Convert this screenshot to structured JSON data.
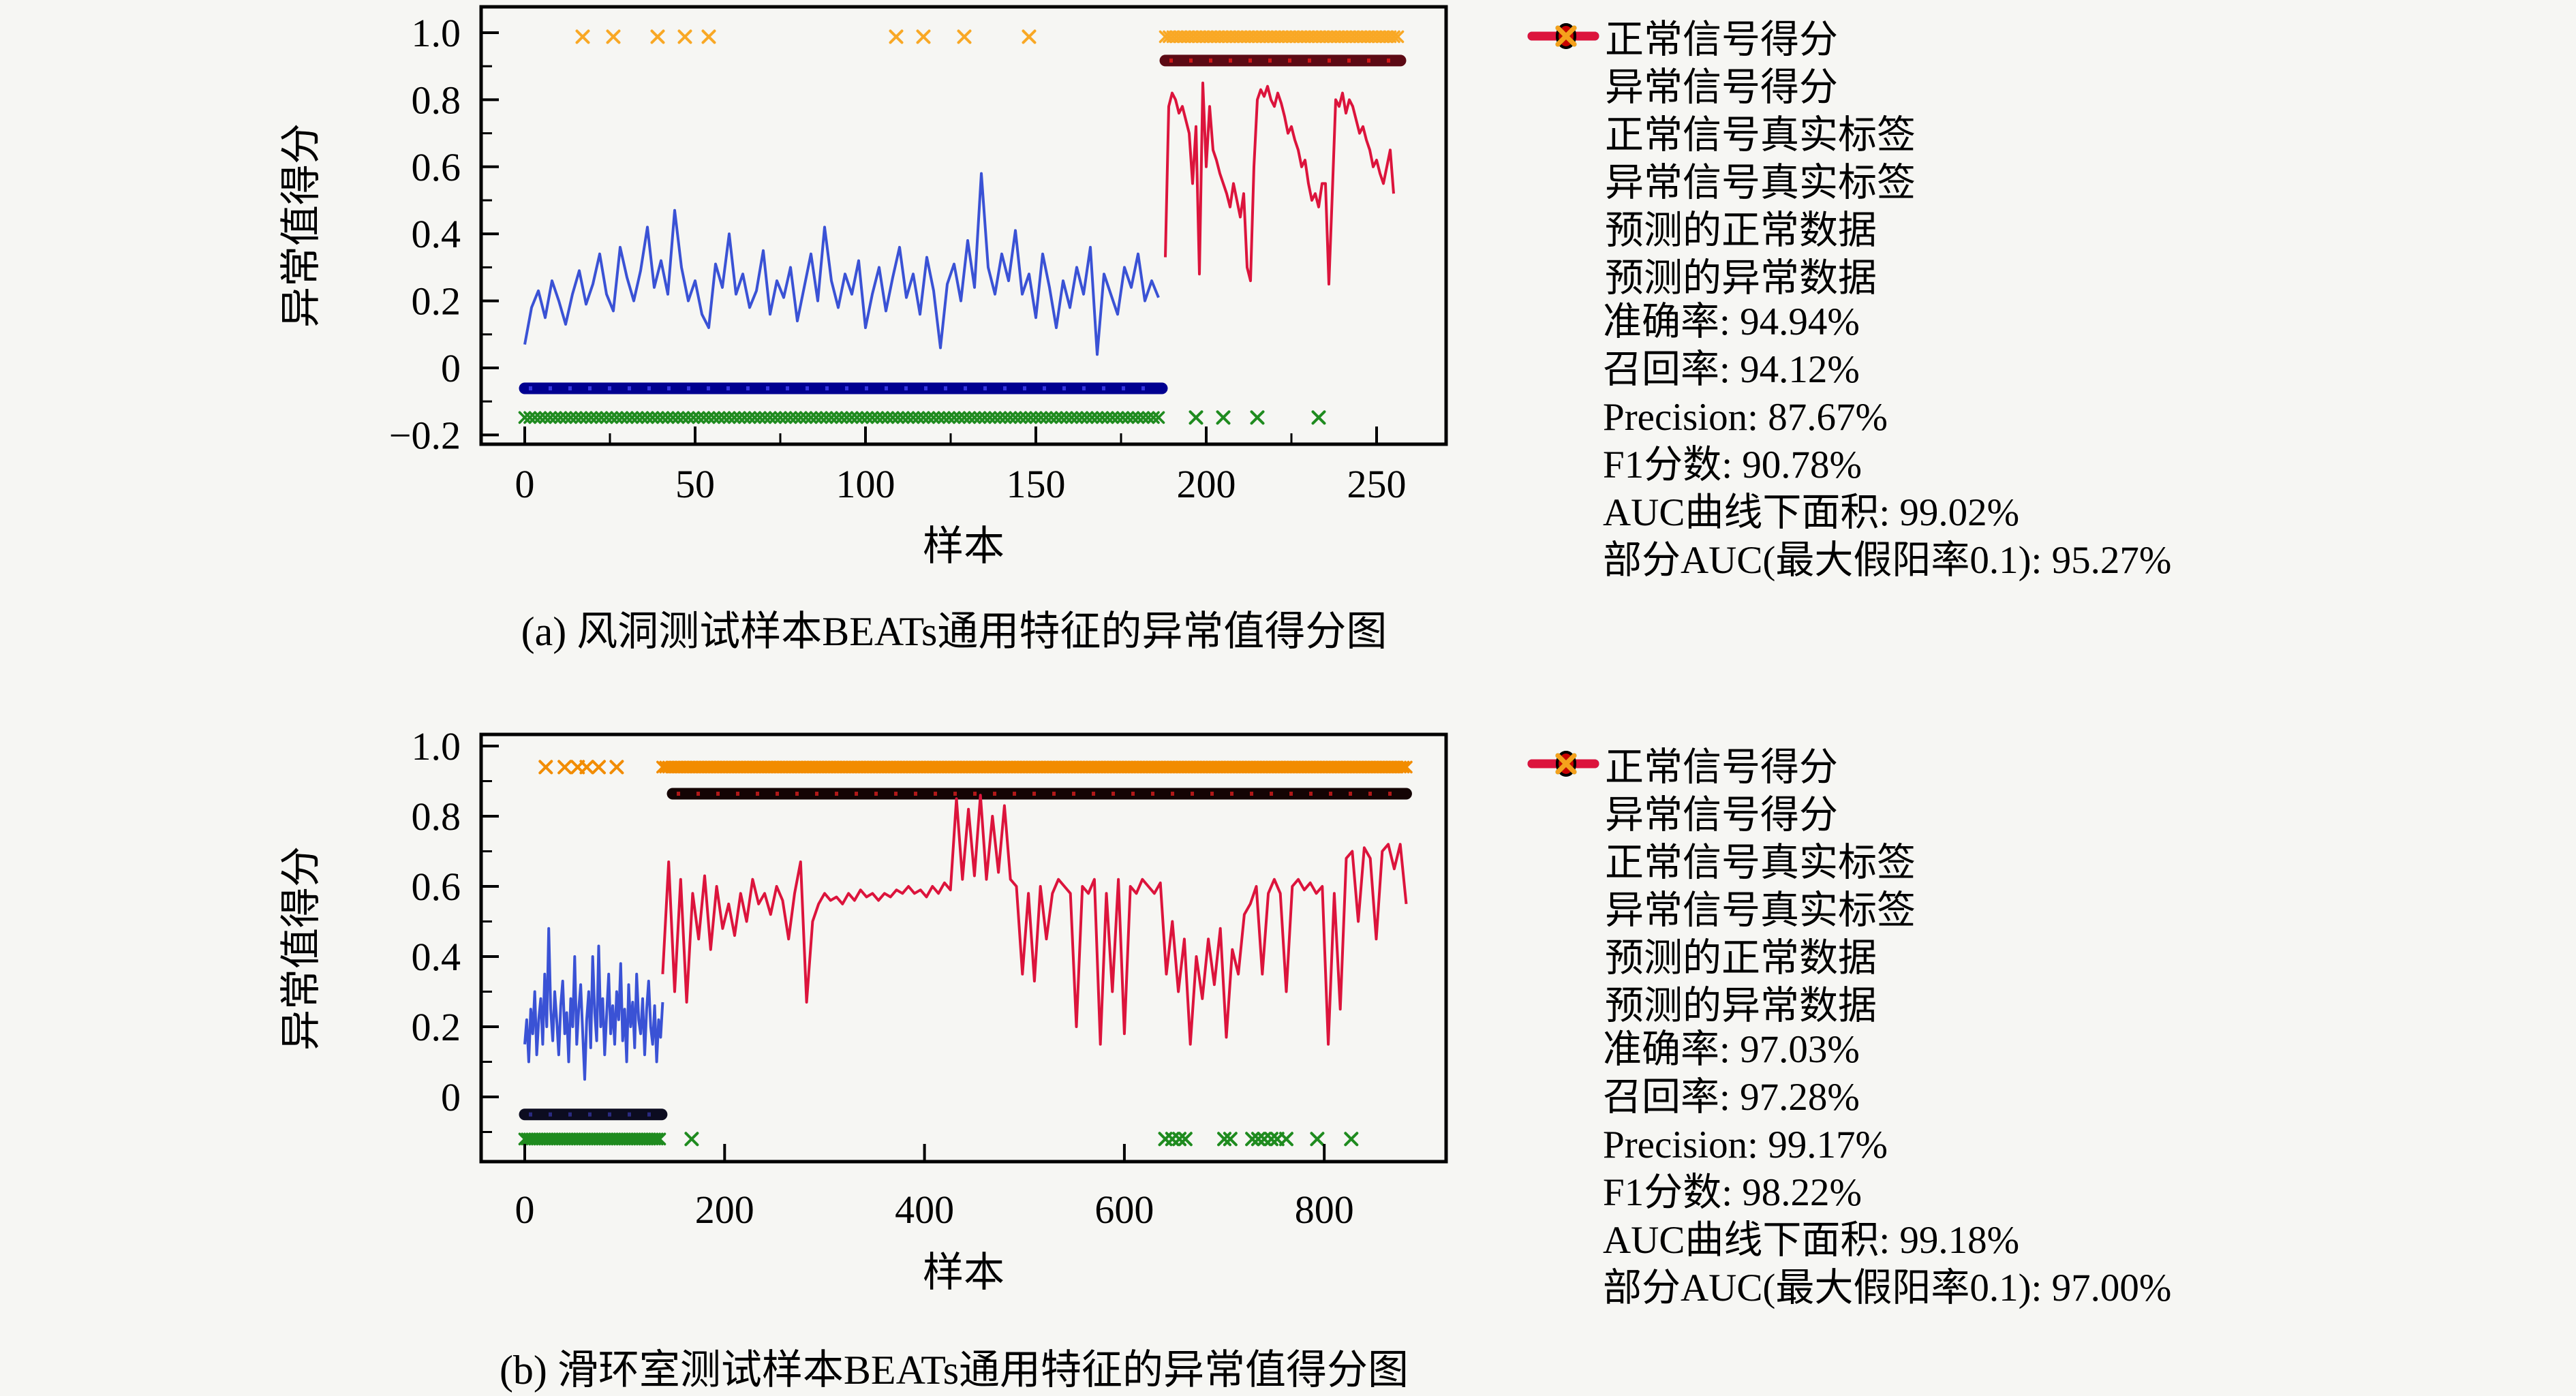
{
  "figure": {
    "background": "#f6f6f3",
    "axis_color": "#000000"
  },
  "legend": {
    "position": "right",
    "entries": [
      {
        "marker": "line",
        "color": "#3a52d5",
        "label": "正常信号得分"
      },
      {
        "marker": "line",
        "color": "#dc143c",
        "label": "异常信号得分"
      },
      {
        "marker": "dot",
        "color": "#0000b4",
        "label": "正常信号真实标签"
      },
      {
        "marker": "dot",
        "color": "#c80000",
        "label": "异常信号真实标签"
      },
      {
        "marker": "x",
        "color": "#1f8b1f",
        "label": "预测的正常数据"
      },
      {
        "marker": "x",
        "color": "#f5a11c",
        "label": "预测的异常数据"
      }
    ]
  },
  "chart_data": [
    {
      "type": "line+scatter",
      "caption": "(a) 风洞测试样本BEATs通用特征的异常值得分图",
      "xlabel": "样本",
      "ylabel": "异常值得分",
      "x_ticks": [
        0,
        50,
        100,
        150,
        200,
        250
      ],
      "x_minor_step": 25,
      "y_ticks": [
        1.0,
        0.8,
        0.6,
        0.4,
        0.2,
        0,
        -0.2
      ],
      "y_tick_labels": [
        "1.0",
        "0.8",
        "0.6",
        "0.4",
        "0.2",
        "0",
        "−0.2"
      ],
      "xlim": [
        -13,
        270
      ],
      "ylim": [
        -0.23,
        1.08
      ],
      "grid": false,
      "series": [
        {
          "name": "正常信号得分",
          "color": "#3a52d5",
          "x_start": 0,
          "x_step": 2,
          "values": [
            0.07,
            0.18,
            0.23,
            0.15,
            0.26,
            0.2,
            0.13,
            0.22,
            0.29,
            0.19,
            0.25,
            0.34,
            0.22,
            0.17,
            0.36,
            0.27,
            0.2,
            0.29,
            0.42,
            0.24,
            0.32,
            0.22,
            0.47,
            0.3,
            0.2,
            0.26,
            0.16,
            0.12,
            0.31,
            0.24,
            0.4,
            0.22,
            0.28,
            0.18,
            0.23,
            0.35,
            0.16,
            0.26,
            0.21,
            0.3,
            0.14,
            0.24,
            0.34,
            0.2,
            0.42,
            0.26,
            0.18,
            0.28,
            0.22,
            0.32,
            0.12,
            0.22,
            0.3,
            0.17,
            0.27,
            0.36,
            0.21,
            0.28,
            0.16,
            0.33,
            0.23,
            0.06,
            0.25,
            0.31,
            0.2,
            0.38,
            0.24,
            0.58,
            0.3,
            0.22,
            0.34,
            0.26,
            0.41,
            0.22,
            0.28,
            0.15,
            0.34,
            0.24,
            0.12,
            0.26,
            0.18,
            0.3,
            0.22,
            0.36,
            0.04,
            0.28,
            0.22,
            0.16,
            0.3,
            0.24,
            0.34,
            0.2,
            0.26,
            0.21
          ]
        },
        {
          "name": "异常信号得分",
          "color": "#dc143c",
          "x_start": 188,
          "x_step": 1,
          "values": [
            0.33,
            0.78,
            0.82,
            0.8,
            0.76,
            0.78,
            0.74,
            0.7,
            0.55,
            0.72,
            0.28,
            0.85,
            0.6,
            0.78,
            0.65,
            0.62,
            0.58,
            0.55,
            0.52,
            0.48,
            0.55,
            0.5,
            0.45,
            0.52,
            0.3,
            0.26,
            0.6,
            0.8,
            0.83,
            0.81,
            0.84,
            0.8,
            0.78,
            0.82,
            0.79,
            0.75,
            0.7,
            0.72,
            0.68,
            0.65,
            0.6,
            0.62,
            0.55,
            0.5,
            0.52,
            0.48,
            0.55,
            0.55,
            0.25,
            0.52,
            0.8,
            0.78,
            0.82,
            0.76,
            0.8,
            0.78,
            0.74,
            0.7,
            0.72,
            0.68,
            0.65,
            0.6,
            0.62,
            0.58,
            0.55,
            0.6,
            0.65,
            0.52
          ]
        }
      ],
      "marker_rows": [
        {
          "name": "正常信号真实标签",
          "marker": "dot",
          "color": "#000090",
          "speckle": "#3636e0",
          "y": -0.061,
          "from": 0,
          "to": 187
        },
        {
          "name": "异常信号真实标签",
          "marker": "dot",
          "color": "#5c0a14",
          "speckle": "#d01818",
          "y": 0.917,
          "from": 188,
          "to": 257
        },
        {
          "name": "预测的正常数据",
          "marker": "x",
          "color": "#1f8b1f",
          "y": -0.148,
          "from": 0,
          "to": 187,
          "step": 1.5,
          "extra": [
            197,
            205,
            215,
            233
          ]
        },
        {
          "name": "预测的异常数据",
          "marker": "x",
          "color": "#f9a825",
          "y": 0.988,
          "from": 188,
          "to": 257,
          "step": 1.1,
          "extra": [
            17,
            26,
            39,
            47,
            54,
            109,
            117,
            129,
            148
          ]
        }
      ],
      "metrics": [
        "准确率: 94.94%",
        "召回率: 94.12%",
        "Precision: 87.67%",
        "F1分数: 90.78%",
        "AUC曲线下面积: 99.02%",
        "部分AUC(最大假阳率0.1): 95.27%"
      ]
    },
    {
      "type": "line+scatter",
      "caption": "(b) 滑环室测试样本BEATs通用特征的异常值得分图",
      "xlabel": "样本",
      "ylabel": "异常值得分",
      "x_ticks": [
        0,
        200,
        400,
        600,
        800
      ],
      "x_minor_step": 0,
      "y_ticks": [
        1.0,
        0.8,
        0.6,
        0.4,
        0.2,
        0
      ],
      "y_tick_labels": [
        "1.0",
        "0.8",
        "0.6",
        "0.4",
        "0.2",
        "0"
      ],
      "xlim": [
        -44,
        922
      ],
      "ylim": [
        -0.184,
        1.033
      ],
      "grid": false,
      "series": [
        {
          "name": "正常信号得分",
          "color": "#3a52d5",
          "x_start": 0,
          "x_step": 2,
          "values": [
            0.15,
            0.22,
            0.1,
            0.25,
            0.18,
            0.3,
            0.12,
            0.22,
            0.28,
            0.15,
            0.35,
            0.2,
            0.48,
            0.25,
            0.16,
            0.3,
            0.22,
            0.12,
            0.26,
            0.33,
            0.18,
            0.24,
            0.1,
            0.28,
            0.2,
            0.4,
            0.15,
            0.25,
            0.32,
            0.18,
            0.05,
            0.22,
            0.3,
            0.14,
            0.4,
            0.24,
            0.16,
            0.43,
            0.2,
            0.28,
            0.12,
            0.24,
            0.35,
            0.18,
            0.26,
            0.15,
            0.3,
            0.22,
            0.38,
            0.16,
            0.25,
            0.1,
            0.32,
            0.2,
            0.27,
            0.14,
            0.35,
            0.22,
            0.18,
            0.28,
            0.12,
            0.25,
            0.33,
            0.2,
            0.15,
            0.26,
            0.1,
            0.22,
            0.17,
            0.27
          ]
        },
        {
          "name": "异常信号得分",
          "color": "#dc143c",
          "x_start": 138,
          "x_step": 6,
          "values": [
            0.35,
            0.67,
            0.3,
            0.62,
            0.27,
            0.58,
            0.45,
            0.63,
            0.42,
            0.6,
            0.48,
            0.55,
            0.46,
            0.58,
            0.5,
            0.62,
            0.55,
            0.58,
            0.52,
            0.6,
            0.56,
            0.45,
            0.58,
            0.67,
            0.27,
            0.5,
            0.55,
            0.58,
            0.56,
            0.57,
            0.55,
            0.58,
            0.56,
            0.59,
            0.57,
            0.58,
            0.56,
            0.58,
            0.57,
            0.59,
            0.58,
            0.6,
            0.58,
            0.59,
            0.57,
            0.6,
            0.58,
            0.61,
            0.59,
            0.85,
            0.62,
            0.82,
            0.63,
            0.86,
            0.62,
            0.8,
            0.64,
            0.83,
            0.62,
            0.6,
            0.35,
            0.58,
            0.33,
            0.6,
            0.45,
            0.58,
            0.62,
            0.6,
            0.58,
            0.2,
            0.6,
            0.58,
            0.62,
            0.15,
            0.58,
            0.3,
            0.62,
            0.18,
            0.6,
            0.58,
            0.62,
            0.6,
            0.58,
            0.61,
            0.35,
            0.5,
            0.3,
            0.45,
            0.15,
            0.4,
            0.28,
            0.45,
            0.32,
            0.48,
            0.17,
            0.42,
            0.35,
            0.52,
            0.55,
            0.6,
            0.35,
            0.58,
            0.62,
            0.58,
            0.3,
            0.6,
            0.62,
            0.59,
            0.61,
            0.58,
            0.6,
            0.15,
            0.58,
            0.25,
            0.68,
            0.7,
            0.5,
            0.71,
            0.68,
            0.45,
            0.7,
            0.72,
            0.65,
            0.72,
            0.55
          ]
        }
      ],
      "marker_rows": [
        {
          "name": "正常信号真实标签",
          "marker": "dot",
          "color": "#0c0c20",
          "speckle": "#2a2a80",
          "y": -0.05,
          "from": 0,
          "to": 137
        },
        {
          "name": "异常信号真实标签",
          "marker": "dot",
          "color": "#140404",
          "speckle": "#b01818",
          "y": 0.864,
          "from": 148,
          "to": 882
        },
        {
          "name": "预测的正常数据",
          "marker": "x",
          "color": "#1f8b1f",
          "y": -0.12,
          "from": 0,
          "to": 137,
          "step": 2.5,
          "extra": [
            167,
            641,
            648,
            655,
            661,
            700,
            706,
            728,
            734,
            740,
            747,
            753,
            762,
            793,
            827
          ]
        },
        {
          "name": "预测的异常数据",
          "marker": "x",
          "color": "#f28c00",
          "y": 0.94,
          "from": 138,
          "to": 882,
          "step": 3,
          "extra": [
            21,
            40,
            53,
            62,
            74,
            92
          ]
        }
      ],
      "metrics": [
        "准确率: 97.03%",
        "召回率: 97.28%",
        "Precision: 99.17%",
        "F1分数: 98.22%",
        "AUC曲线下面积: 99.18%",
        "部分AUC(最大假阳率0.1): 97.00%"
      ]
    }
  ]
}
